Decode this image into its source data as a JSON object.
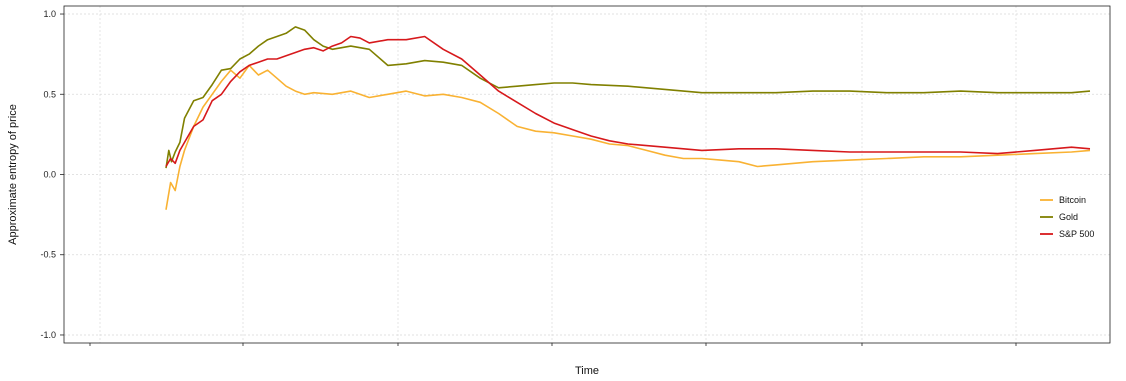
{
  "chart_data": {
    "type": "line",
    "title": "",
    "xlabel": "Time",
    "ylabel": "Approximate entropy of price",
    "ylim": [
      -1.05,
      1.05
    ],
    "yticks": [
      {
        "value": 1.0,
        "label": "1.0"
      },
      {
        "value": 0.5,
        "label": "0.5"
      },
      {
        "value": 0.0,
        "label": "0.0"
      },
      {
        "value": -0.5,
        "label": "-0.5"
      },
      {
        "value": -1.0,
        "label": "-1.0"
      }
    ],
    "grid": true,
    "legend_position": "right",
    "x_range": [
      0,
      100
    ],
    "series": [
      {
        "name": "Bitcoin",
        "color": "#f9b233",
        "x": [
          0,
          0.5,
          1,
          1.5,
          2,
          3,
          4,
          5,
          6,
          7,
          8,
          9,
          10,
          11,
          12,
          13,
          14,
          15,
          16,
          18,
          20,
          22,
          24,
          26,
          28,
          30,
          32,
          34,
          36,
          38,
          40,
          42,
          44,
          46,
          48,
          50,
          52,
          54,
          56,
          58,
          60,
          62,
          64,
          66,
          70,
          74,
          78,
          82,
          86,
          90,
          94,
          98,
          100
        ],
        "y": [
          -0.22,
          -0.05,
          -0.1,
          0.05,
          0.15,
          0.3,
          0.42,
          0.5,
          0.58,
          0.65,
          0.6,
          0.68,
          0.62,
          0.65,
          0.6,
          0.55,
          0.52,
          0.5,
          0.51,
          0.5,
          0.52,
          0.48,
          0.5,
          0.52,
          0.49,
          0.5,
          0.48,
          0.45,
          0.38,
          0.3,
          0.27,
          0.26,
          0.24,
          0.22,
          0.19,
          0.18,
          0.15,
          0.12,
          0.1,
          0.1,
          0.09,
          0.08,
          0.05,
          0.06,
          0.08,
          0.09,
          0.1,
          0.11,
          0.11,
          0.12,
          0.13,
          0.14,
          0.15
        ]
      },
      {
        "name": "Gold",
        "color": "#808000",
        "x": [
          0,
          0.3,
          0.6,
          1,
          1.5,
          2,
          3,
          4,
          5,
          6,
          7,
          8,
          9,
          10,
          11,
          12,
          13,
          14,
          15,
          16,
          17,
          18,
          20,
          22,
          24,
          26,
          28,
          30,
          32,
          34,
          36,
          38,
          40,
          42,
          44,
          46,
          50,
          54,
          58,
          62,
          66,
          70,
          74,
          78,
          82,
          86,
          90,
          94,
          98,
          100
        ],
        "y": [
          0.04,
          0.15,
          0.08,
          0.14,
          0.2,
          0.35,
          0.46,
          0.48,
          0.56,
          0.65,
          0.66,
          0.72,
          0.75,
          0.8,
          0.84,
          0.86,
          0.88,
          0.92,
          0.9,
          0.84,
          0.8,
          0.78,
          0.8,
          0.78,
          0.68,
          0.69,
          0.71,
          0.7,
          0.68,
          0.6,
          0.54,
          0.55,
          0.56,
          0.57,
          0.57,
          0.56,
          0.55,
          0.53,
          0.51,
          0.51,
          0.51,
          0.52,
          0.52,
          0.51,
          0.51,
          0.52,
          0.51,
          0.51,
          0.51,
          0.52
        ]
      },
      {
        "name": "S&P 500",
        "color": "#d7191c",
        "x": [
          0,
          0.5,
          1,
          1.5,
          2,
          3,
          4,
          5,
          6,
          7,
          8,
          9,
          10,
          11,
          12,
          13,
          14,
          15,
          16,
          17,
          18,
          19,
          20,
          21,
          22,
          24,
          26,
          28,
          30,
          32,
          34,
          36,
          38,
          40,
          42,
          44,
          46,
          48,
          50,
          54,
          58,
          62,
          66,
          70,
          74,
          78,
          82,
          86,
          90,
          94,
          96,
          98,
          100
        ],
        "y": [
          0.05,
          0.1,
          0.07,
          0.15,
          0.2,
          0.3,
          0.34,
          0.46,
          0.5,
          0.58,
          0.64,
          0.68,
          0.7,
          0.72,
          0.72,
          0.74,
          0.76,
          0.78,
          0.79,
          0.77,
          0.8,
          0.82,
          0.86,
          0.85,
          0.82,
          0.84,
          0.84,
          0.86,
          0.78,
          0.72,
          0.62,
          0.52,
          0.45,
          0.38,
          0.32,
          0.28,
          0.24,
          0.21,
          0.19,
          0.17,
          0.15,
          0.16,
          0.16,
          0.15,
          0.14,
          0.14,
          0.14,
          0.14,
          0.13,
          0.15,
          0.16,
          0.17,
          0.16
        ]
      }
    ]
  }
}
